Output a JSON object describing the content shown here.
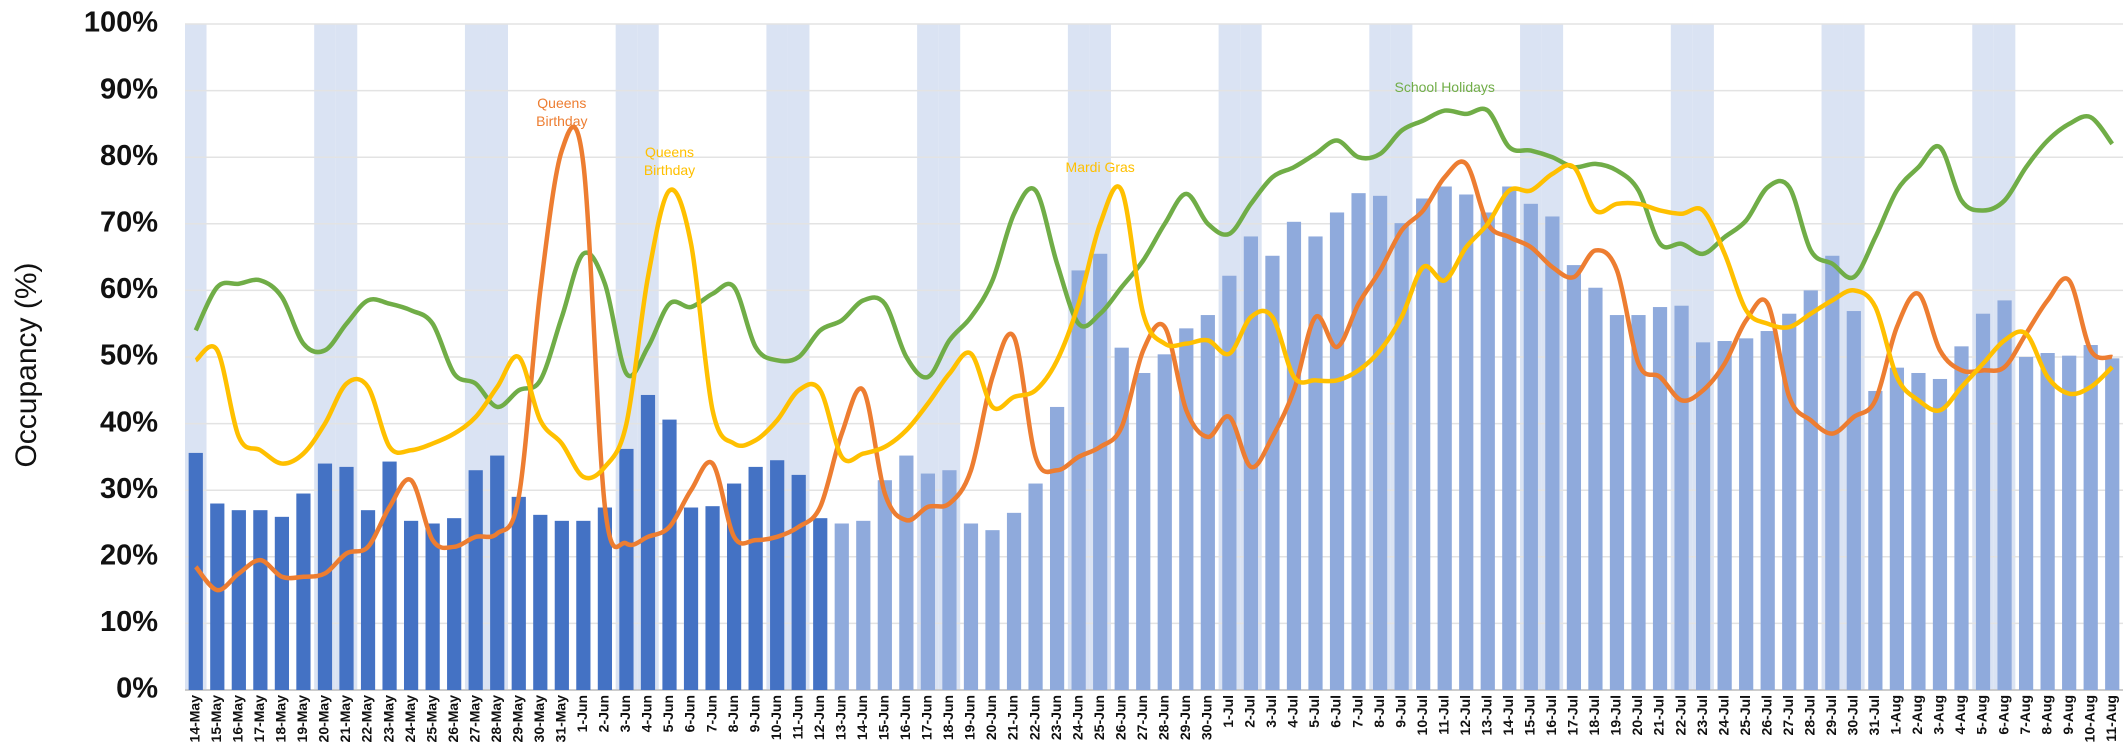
{
  "chart_data": {
    "type": "bar",
    "y_label": "Occupancy (%)",
    "ylim": [
      0,
      100
    ],
    "yticks": [
      {
        "value": 0,
        "label": "0%"
      },
      {
        "value": 10,
        "label": "10%"
      },
      {
        "value": 20,
        "label": "20%"
      },
      {
        "value": 30,
        "label": "30%"
      },
      {
        "value": 40,
        "label": "40%"
      },
      {
        "value": 50,
        "label": "50%"
      },
      {
        "value": 60,
        "label": "60%"
      },
      {
        "value": 70,
        "label": "70%"
      },
      {
        "value": 80,
        "label": "80%"
      },
      {
        "value": 90,
        "label": "90%"
      },
      {
        "value": 100,
        "label": "100%"
      }
    ],
    "grid": true,
    "band_color": "#dae3f3",
    "categories": [
      "14-May",
      "15-May",
      "16-May",
      "17-May",
      "18-May",
      "19-May",
      "20-May",
      "21-May",
      "22-May",
      "23-May",
      "24-May",
      "25-May",
      "26-May",
      "27-May",
      "28-May",
      "29-May",
      "30-May",
      "31-May",
      "1-Jun",
      "2-Jun",
      "3-Jun",
      "4-Jun",
      "5-Jun",
      "6-Jun",
      "7-Jun",
      "8-Jun",
      "9-Jun",
      "10-Jun",
      "11-Jun",
      "12-Jun",
      "13-Jun",
      "14-Jun",
      "15-Jun",
      "16-Jun",
      "17-Jun",
      "18-Jun",
      "19-Jun",
      "20-Jun",
      "21-Jun",
      "22-Jun",
      "23-Jun",
      "24-Jun",
      "25-Jun",
      "26-Jun",
      "27-Jun",
      "28-Jun",
      "29-Jun",
      "30-Jun",
      "1-Jul",
      "2-Jul",
      "3-Jul",
      "4-Jul",
      "5-Jul",
      "6-Jul",
      "7-Jul",
      "8-Jul",
      "9-Jul",
      "10-Jul",
      "11-Jul",
      "12-Jul",
      "13-Jul",
      "14-Jul",
      "15-Jul",
      "16-Jul",
      "17-Jul",
      "18-Jul",
      "19-Jul",
      "20-Jul",
      "21-Jul",
      "22-Jul",
      "23-Jul",
      "24-Jul",
      "25-Jul",
      "26-Jul",
      "27-Jul",
      "28-Jul",
      "29-Jul",
      "30-Jul",
      "31-Jul",
      "1-Aug",
      "2-Aug",
      "3-Aug",
      "4-Aug",
      "5-Aug",
      "6-Aug",
      "7-Aug",
      "8-Aug",
      "9-Aug",
      "10-Aug",
      "11-Aug"
    ],
    "shaded": [
      true,
      false,
      false,
      false,
      false,
      false,
      true,
      true,
      false,
      false,
      false,
      false,
      false,
      true,
      true,
      false,
      false,
      false,
      false,
      false,
      true,
      true,
      false,
      false,
      false,
      false,
      false,
      true,
      true,
      false,
      false,
      false,
      false,
      false,
      true,
      true,
      false,
      false,
      false,
      false,
      false,
      true,
      true,
      false,
      false,
      false,
      false,
      false,
      true,
      true,
      false,
      false,
      false,
      false,
      false,
      true,
      true,
      false,
      false,
      false,
      false,
      false,
      true,
      true,
      false,
      false,
      false,
      false,
      false,
      true,
      true,
      false,
      false,
      false,
      false,
      false,
      true,
      true,
      false,
      false,
      false,
      false,
      false,
      true,
      true,
      false,
      false,
      false,
      false,
      false
    ],
    "series": [
      {
        "type": "bar",
        "color": "#4472c4",
        "values": [
          35.6,
          28,
          27,
          27,
          26,
          29.5,
          34,
          33.5,
          27,
          34.3,
          25.4,
          25,
          25.8,
          33,
          35.2,
          29,
          26.3,
          25.4,
          25.4,
          27.4,
          36.2,
          44.3,
          40.6,
          27.4,
          27.6,
          31,
          33.5,
          34.5,
          32.3,
          25.8,
          null,
          null,
          null,
          null,
          null,
          null,
          null,
          null,
          null,
          null,
          null,
          null,
          null,
          null,
          null,
          null,
          null,
          null,
          null,
          null,
          null,
          null,
          null,
          null,
          null,
          null,
          null,
          null,
          null,
          null,
          null,
          null,
          null,
          null,
          null,
          null,
          null,
          null,
          null,
          null,
          null,
          null,
          null,
          null,
          null,
          null,
          null,
          null,
          null,
          null,
          null,
          null,
          null,
          null,
          null,
          null,
          null,
          null,
          null,
          null
        ]
      },
      {
        "type": "bar",
        "color": "#8faadc",
        "values": [
          null,
          null,
          null,
          null,
          null,
          null,
          null,
          null,
          null,
          null,
          null,
          null,
          null,
          null,
          null,
          null,
          null,
          null,
          null,
          null,
          null,
          null,
          null,
          null,
          null,
          null,
          null,
          null,
          null,
          null,
          25,
          25.4,
          31.5,
          35.2,
          32.5,
          33,
          25,
          24,
          26.6,
          31,
          42.5,
          63,
          65.5,
          51.4,
          47.6,
          50.4,
          54.3,
          56.3,
          62.2,
          68.1,
          65.2,
          70.3,
          68.1,
          71.7,
          74.6,
          74.2,
          70.1,
          73.8,
          75.6,
          74.4,
          71.7,
          75.6,
          73,
          71.1,
          63.8,
          60.4,
          56.3,
          56.3,
          57.5,
          57.7,
          52.2,
          52.4,
          52.8,
          53.9,
          56.5,
          60,
          65.2,
          56.9,
          44.9,
          48.4,
          47.6,
          46.7,
          51.6,
          56.5,
          58.5,
          50,
          50.6,
          50.2,
          51.8,
          49.8
        ]
      },
      {
        "type": "line",
        "color": "#70ad47",
        "values": [
          54,
          60.5,
          61,
          61.5,
          59,
          52,
          51,
          55,
          58.5,
          58,
          57,
          55,
          47.5,
          46,
          42.5,
          45,
          46.5,
          56,
          65.5,
          61,
          47.5,
          51.5,
          58,
          57.5,
          59.5,
          60.5,
          51.5,
          49.5,
          50,
          54,
          55.5,
          58.5,
          58,
          50,
          47,
          52.5,
          56,
          61.5,
          71.5,
          75,
          64,
          55,
          56.5,
          60.5,
          64.5,
          70,
          74.5,
          70,
          68.5,
          73,
          77,
          78.5,
          80.5,
          82.5,
          80,
          80.5,
          84,
          85.5,
          87,
          86.5,
          87,
          81.5,
          81,
          80,
          78.5,
          79,
          78,
          75,
          67,
          67,
          65.5,
          68,
          70.5,
          75.5,
          75.5,
          66,
          64,
          62,
          68,
          75,
          78.5,
          81.5,
          73.5,
          72,
          73.5,
          78.5,
          82.5,
          85,
          86,
          82
        ]
      },
      {
        "type": "line",
        "color": "#ed7d31",
        "values": [
          18.5,
          15,
          17.5,
          19.5,
          17,
          17,
          17.5,
          20.5,
          21.5,
          27.5,
          31.5,
          22.5,
          21.5,
          23,
          23.5,
          29,
          60,
          81,
          79,
          27.5,
          22,
          23,
          24.5,
          30,
          34,
          23,
          22.5,
          23,
          24.5,
          27.5,
          38.5,
          45,
          29.5,
          25.5,
          27.5,
          28,
          33,
          47,
          53,
          35,
          33,
          35,
          36.5,
          39.5,
          51,
          54.5,
          42,
          38,
          41,
          33.5,
          38,
          45,
          56,
          51.5,
          58,
          63,
          69,
          72,
          77,
          79,
          70,
          68,
          66.5,
          63.5,
          62,
          66,
          63,
          49,
          47,
          43.5,
          45,
          49,
          55.5,
          58,
          44,
          40.5,
          38.5,
          41,
          43.5,
          54.5,
          59.5,
          51,
          48,
          48,
          48.5,
          53.5,
          58.5,
          61.5,
          51,
          50
        ]
      },
      {
        "type": "line",
        "color": "#ffc000",
        "values": [
          49.5,
          51,
          38,
          36,
          34,
          35.5,
          40,
          46,
          45.5,
          36.5,
          36,
          37,
          38.5,
          41,
          45.5,
          50,
          40.5,
          37,
          32,
          33.5,
          40,
          62,
          75,
          67,
          42,
          37,
          37.5,
          40.5,
          45,
          45,
          35,
          35.5,
          36.5,
          39,
          43,
          47.5,
          50.5,
          42.5,
          44,
          45,
          49.5,
          58,
          70,
          75,
          56.5,
          52,
          52,
          52.5,
          50.5,
          56,
          56,
          47,
          46.5,
          46.5,
          48,
          51,
          56,
          63.5,
          61.5,
          66.5,
          70,
          75,
          75,
          77.5,
          78.5,
          72,
          73,
          73,
          72,
          71.5,
          72,
          65.5,
          57,
          55,
          54.5,
          56.5,
          58.5,
          60,
          57.5,
          47,
          43.5,
          42,
          45.5,
          49,
          52.5,
          53.5,
          47,
          44.5,
          45.5,
          48.5
        ]
      }
    ],
    "annotations": [
      {
        "lines": [
          "Queens",
          "Birthday"
        ],
        "x": "31-May",
        "y": 87.4,
        "color": "#ed7d31"
      },
      {
        "lines": [
          "Queens",
          "Birthday"
        ],
        "x": "5-Jun",
        "y": 80,
        "color": "#ffc000"
      },
      {
        "lines": [
          "Mardi Gras"
        ],
        "x": "25-Jun",
        "y": 77.8,
        "color": "#ffc000"
      },
      {
        "lines": [
          "School Holidays"
        ],
        "x": "11-Jul",
        "y": 89.8,
        "color": "#70ad47"
      }
    ]
  }
}
